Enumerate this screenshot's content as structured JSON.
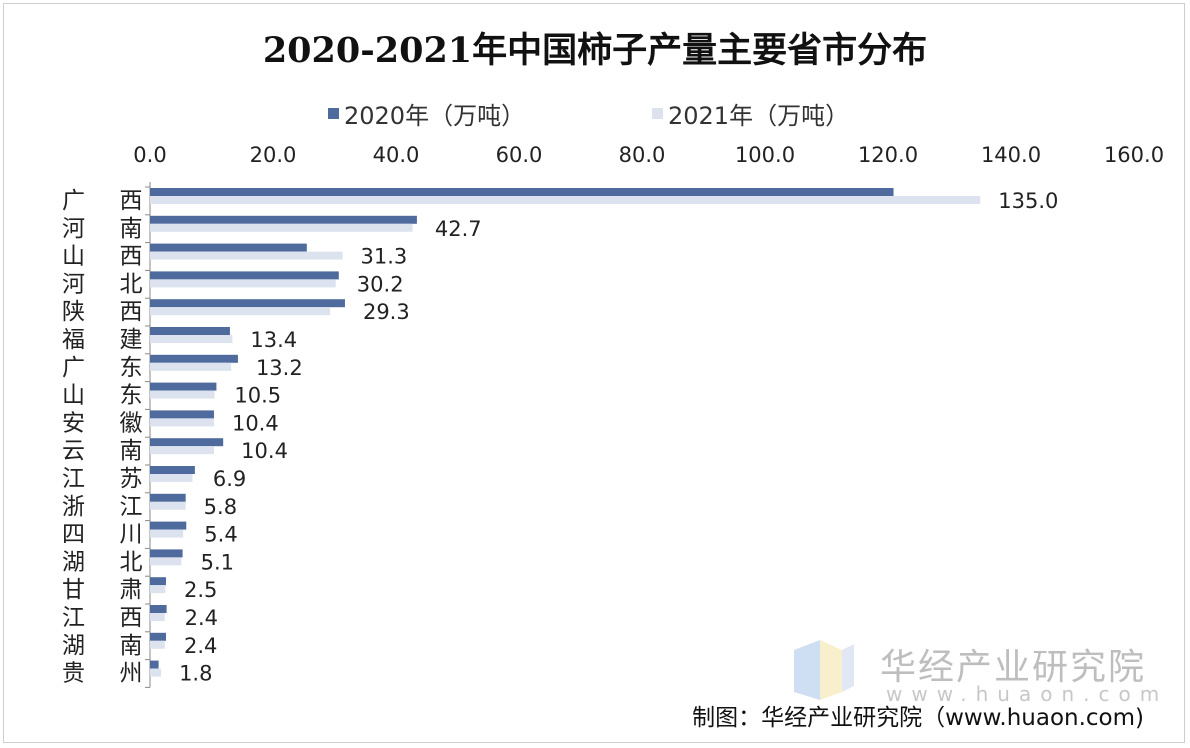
{
  "chart_data": {
    "type": "bar",
    "orientation": "horizontal",
    "title": "2020-2021年中国柿子产量主要省市分布",
    "categories": [
      "广 西",
      "河 南",
      "山 西",
      "河 北",
      "陕 西",
      "福 建",
      "广 东",
      "山 东",
      "安 徽",
      "云 南",
      "江 苏",
      "浙 江",
      "四 川",
      "湖 北",
      "甘 肃",
      "江 西",
      "湖 南",
      "贵 州"
    ],
    "series": [
      {
        "name": "2020年（万吨）",
        "color": "#4f6a9c",
        "values": [
          120.9,
          43.4,
          25.5,
          30.7,
          31.7,
          13.0,
          14.3,
          10.8,
          10.4,
          11.9,
          7.3,
          5.8,
          5.9,
          5.3,
          2.6,
          2.7,
          2.6,
          1.4
        ]
      },
      {
        "name": "2021年（万吨）",
        "color": "#dce3ef",
        "values": [
          135.0,
          42.7,
          31.3,
          30.2,
          29.3,
          13.4,
          13.2,
          10.5,
          10.4,
          10.4,
          6.9,
          5.8,
          5.4,
          5.1,
          2.5,
          2.4,
          2.4,
          1.8
        ]
      }
    ],
    "data_labels": [
      "135.0",
      "42.7",
      "31.3",
      "30.2",
      "29.3",
      "13.4",
      "13.2",
      "10.5",
      "10.4",
      "10.4",
      "6.9",
      "5.8",
      "5.4",
      "5.1",
      "2.5",
      "2.4",
      "2.4",
      "1.8"
    ],
    "xlim": [
      0,
      160
    ],
    "xticks": [
      "0.0",
      "20.0",
      "40.0",
      "60.0",
      "80.0",
      "100.0",
      "120.0",
      "140.0",
      "160.0"
    ],
    "x_axis_position": "top",
    "legend_position": "top",
    "grid": false
  },
  "watermark": {
    "name": "华经产业研究院",
    "url": "www.huaon.com"
  },
  "source": "制图：华经产业研究院（www.huaon.com)"
}
